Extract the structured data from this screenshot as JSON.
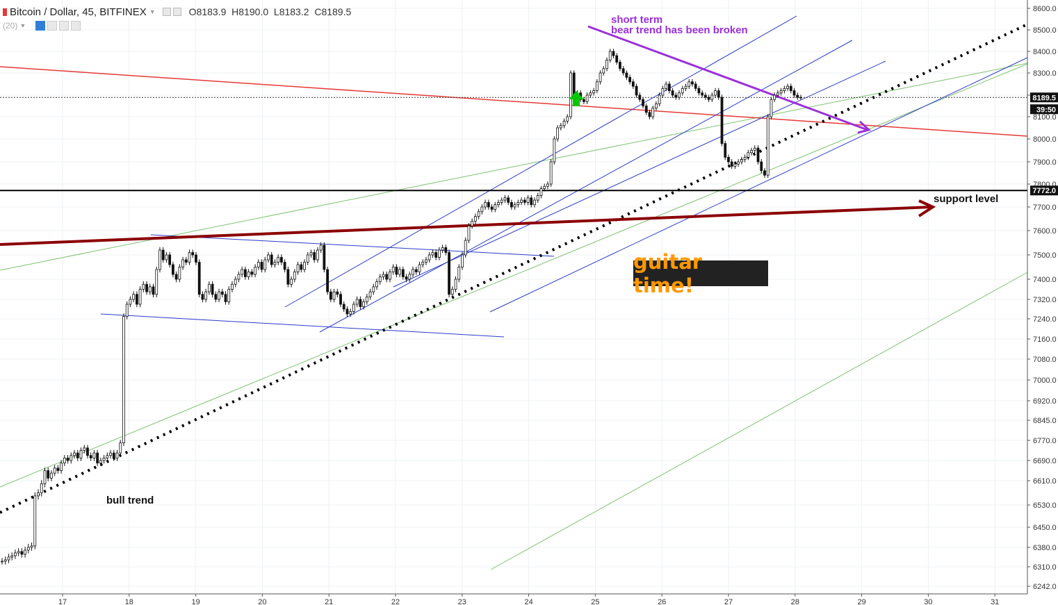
{
  "header": {
    "symbol": "Bitcoin / Dollar, 45, BITFINEX",
    "o_label": "O",
    "o_value": "8183.9",
    "h_label": "H",
    "h_value": "8190.0",
    "l_label": "L",
    "l_value": "8183.2",
    "c_label": "C",
    "c_value": "8189.5",
    "indicator": "(20)"
  },
  "annotations": {
    "short_term": "short term",
    "bear_broken": "bear trend has been broken",
    "support_level": "support level",
    "bull_trend": "bull trend",
    "guitar": "guitar time!"
  },
  "price_badges": {
    "last_price": "8189.5",
    "countdown": "39:50",
    "support": "7772.0"
  },
  "colors": {
    "up_arrow": "#00c800",
    "support_line": "#8b0000",
    "resistance_line": "#e53935",
    "channel": "#2b3bc8",
    "bear_trend": "#9b30d9",
    "long_trend": "#7cc36e",
    "guitar_bg": "#222222",
    "guitar_text": "#ff9800"
  },
  "chart_data": {
    "type": "candlestick",
    "x_ticks": [
      "17",
      "18",
      "19",
      "20",
      "21",
      "22",
      "23",
      "24",
      "25",
      "26",
      "27",
      "28",
      "29",
      "30",
      "31"
    ],
    "y_ticks": [
      "8600.0",
      "8500.0",
      "8400.0",
      "8300.0",
      "8200.0",
      "8100.0",
      "8000.0",
      "7900.0",
      "7800.0",
      "7700.0",
      "7600.0",
      "7500.0",
      "7400.0",
      "7320.0",
      "7240.0",
      "7160.0",
      "7080.0",
      "7000.0",
      "6920.0",
      "6845.0",
      "6770.0",
      "6690.0",
      "6610.0",
      "6530.0",
      "6450.0",
      "6380.0",
      "6310.0",
      "6242.0"
    ],
    "series": [
      {
        "close": [
          6330,
          6335,
          6345,
          6350,
          6360,
          6365,
          6355,
          6370,
          6380,
          6385,
          6560,
          6570,
          6600,
          6650,
          6620,
          6640,
          6660,
          6650,
          6680,
          6700,
          6690,
          6710,
          6720,
          6700,
          6730,
          6740,
          6710,
          6700,
          6720,
          6680,
          6690,
          6700,
          6710,
          6720,
          6700,
          6720,
          6760,
          7250,
          7300,
          7320,
          7340,
          7300,
          7360,
          7380,
          7350,
          7370,
          7340,
          7440,
          7520,
          7480,
          7500,
          7460,
          7420,
          7400,
          7450,
          7480,
          7470,
          7510,
          7500,
          7470,
          7340,
          7320,
          7350,
          7380,
          7340,
          7320,
          7350,
          7340,
          7310,
          7360,
          7380,
          7400,
          7420,
          7440,
          7410,
          7430,
          7420,
          7450,
          7470,
          7440,
          7480,
          7500,
          7460,
          7470,
          7490,
          7470,
          7440,
          7380,
          7400,
          7430,
          7460,
          7440,
          7470,
          7500,
          7510,
          7480,
          7520,
          7540,
          7440,
          7350,
          7320,
          7350,
          7340,
          7300,
          7280,
          7260,
          7270,
          7300,
          7320,
          7290,
          7310,
          7330,
          7350,
          7370,
          7390,
          7410,
          7420,
          7400,
          7430,
          7450,
          7420,
          7440,
          7410,
          7400,
          7420,
          7440,
          7430,
          7460,
          7470,
          7480,
          7500,
          7510,
          7490,
          7520,
          7530,
          7510,
          7340,
          7360,
          7400,
          7450,
          7500,
          7560,
          7620,
          7640,
          7660,
          7680,
          7700,
          7720,
          7700,
          7690,
          7710,
          7720,
          7730,
          7740,
          7720,
          7700,
          7710,
          7720,
          7730,
          7720,
          7740,
          7710,
          7730,
          7750,
          7780,
          7790,
          7800,
          7900,
          8000,
          8050,
          8060,
          8080,
          8100,
          8300,
          8200,
          8210,
          8180,
          8170,
          8200,
          8210,
          8220,
          8260,
          8300,
          8320,
          8360,
          8400,
          8380,
          8350,
          8320,
          8300,
          8280,
          8260,
          8240,
          8200,
          8180,
          8150,
          8120,
          8100,
          8140,
          8160,
          8200,
          8230,
          8250,
          8220,
          8200,
          8190,
          8210,
          8230,
          8240,
          8260,
          8250,
          8230,
          8210,
          8200,
          8190,
          8180,
          8200,
          8220,
          8190,
          7980,
          7920,
          7900,
          7880,
          7890,
          7900,
          7910,
          7920,
          7940,
          7950,
          7960,
          7900,
          7860,
          7840,
          8100,
          8180,
          8200,
          8210,
          8220,
          8230,
          8240,
          8220,
          8200,
          8190,
          8189.5
        ],
        "support_level": 7772.0,
        "last_price": 8189.5
      }
    ]
  }
}
